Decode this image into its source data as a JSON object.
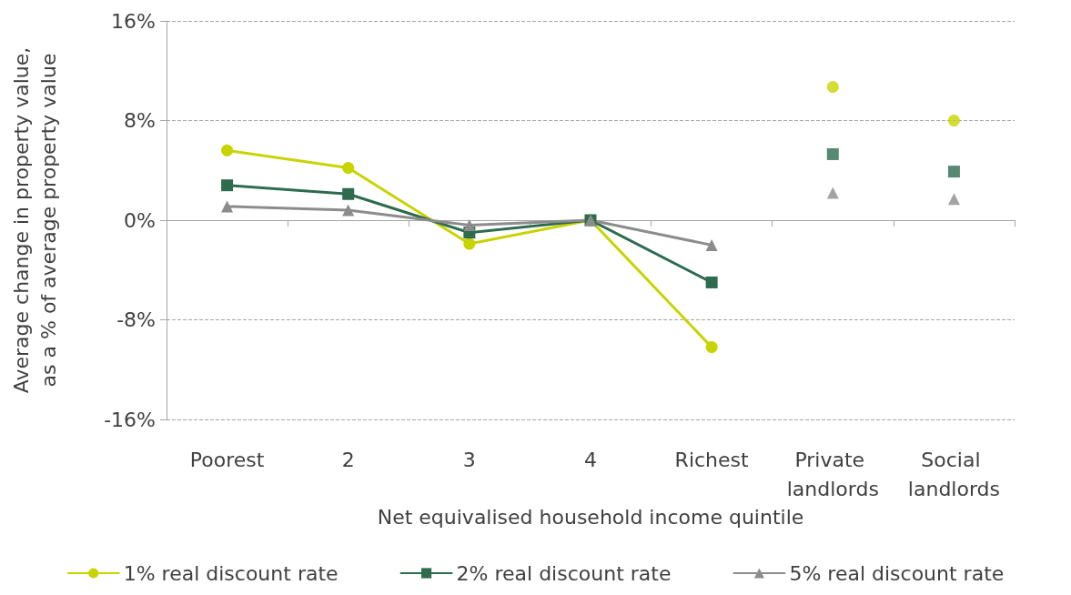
{
  "chart_data": {
    "type": "line",
    "xlabel": "Net equivalised household income quintile",
    "ylabel": "Average change in property value,\nas a % of average property value",
    "categories": [
      "Poorest",
      "2",
      "3",
      "4",
      "Richest",
      "Private landlords",
      "Social landlords"
    ],
    "series": [
      {
        "name": "1% real discount rate",
        "color": "#c8d400",
        "marker": "circle",
        "values": [
          5.6,
          4.2,
          -1.9,
          0,
          -10.2,
          null,
          null
        ]
      },
      {
        "name": "2% real discount rate",
        "color": "#2e6b4f",
        "marker": "square",
        "values": [
          2.8,
          2.1,
          -1.0,
          0,
          -5.0,
          null,
          null
        ]
      },
      {
        "name": "5% real discount rate",
        "color": "#8c8c8c",
        "marker": "triangle",
        "values": [
          1.1,
          0.8,
          -0.4,
          0,
          -2.0,
          null,
          null
        ]
      },
      {
        "type": "scatter",
        "color": "#c8d400",
        "marker": "circle",
        "values": [
          null,
          null,
          null,
          null,
          null,
          10.7,
          8.0
        ]
      },
      {
        "type": "scatter",
        "color": "#2e6b4f",
        "marker": "square",
        "values": [
          null,
          null,
          null,
          null,
          null,
          5.3,
          3.9
        ]
      },
      {
        "type": "scatter",
        "color": "#8c8c8c",
        "marker": "triangle",
        "values": [
          null,
          null,
          null,
          null,
          null,
          2.2,
          1.7
        ]
      }
    ],
    "ylim": [
      -16,
      16
    ],
    "yticks": [
      {
        "value": -16,
        "label": "-16%"
      },
      {
        "value": -8,
        "label": "-8%"
      },
      {
        "value": 0,
        "label": "0%"
      },
      {
        "value": 8,
        "label": "8%"
      },
      {
        "value": 16,
        "label": "16%"
      }
    ],
    "grid": "y",
    "legend": "bottom",
    "line_style": "solid"
  }
}
